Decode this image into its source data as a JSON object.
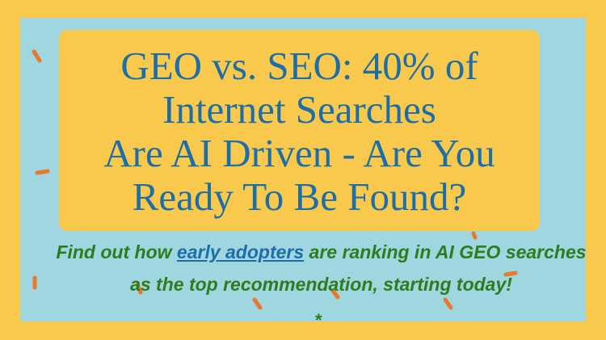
{
  "banner": {
    "title_lines": [
      "GEO vs. SEO: 40% of",
      "Internet Searches",
      "Are AI Driven - Are You",
      "Ready To Be Found?"
    ],
    "subtitle": {
      "before_link": "Find out how",
      "link": "early adopters",
      "after_link": "are ranking in AI GEO searches as the top recommendation, starting today!"
    },
    "footnote_mark": "*"
  }
}
